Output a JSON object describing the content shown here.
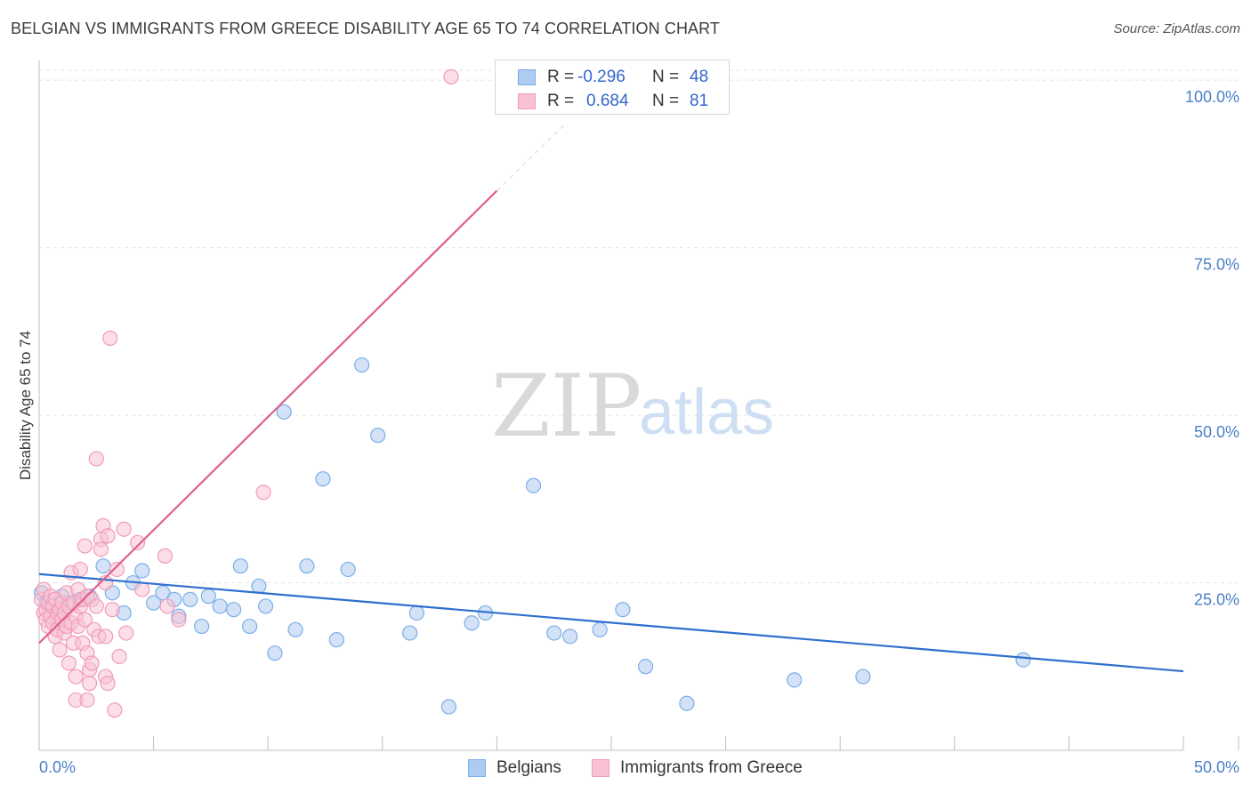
{
  "chart_data": {
    "type": "scatter",
    "title": "BELGIAN VS IMMIGRANTS FROM GREECE DISABILITY AGE 65 TO 74 CORRELATION CHART",
    "source": "Source: ZipAtlas.com",
    "xlabel": "",
    "ylabel": "Disability Age 65 to 74",
    "xlim": [
      0,
      50
    ],
    "ylim": [
      0,
      104
    ],
    "x_tick_labels": {
      "min": "0.0%",
      "max": "50.0%"
    },
    "y_ticks": [
      {
        "value": 25,
        "label": "25.0%"
      },
      {
        "value": 50,
        "label": "50.0%"
      },
      {
        "value": 75,
        "label": "75.0%"
      },
      {
        "value": 100,
        "label": "100.0%"
      }
    ],
    "grid": true,
    "watermark": {
      "zip": "ZIP",
      "atlas": "atlas"
    },
    "legend_position": "top-center",
    "series": [
      {
        "name": "Belgians",
        "color": "#7baee8",
        "fill": "#aecbf1",
        "line_color": "#2f6fcd",
        "r_label": "R =",
        "r_value": "-0.296",
        "n_label": "N =",
        "n_value": "48",
        "trend": {
          "x0": 0,
          "y0": 26.3,
          "x1": 50,
          "y1": 11.8,
          "dashed_to": null
        },
        "points": [
          [
            0.1,
            23.5
          ],
          [
            0.3,
            22.0
          ],
          [
            0.5,
            21.5
          ],
          [
            0.8,
            20.0
          ],
          [
            1.0,
            23.0
          ],
          [
            1.3,
            22.0
          ],
          [
            1.8,
            22.5
          ],
          [
            2.2,
            23.0
          ],
          [
            2.8,
            27.5
          ],
          [
            3.2,
            23.5
          ],
          [
            3.7,
            20.5
          ],
          [
            4.1,
            25.0
          ],
          [
            4.5,
            26.8
          ],
          [
            5.0,
            22.0
          ],
          [
            5.4,
            23.5
          ],
          [
            5.9,
            22.5
          ],
          [
            6.1,
            20.0
          ],
          [
            6.6,
            22.5
          ],
          [
            7.1,
            18.5
          ],
          [
            7.4,
            23.0
          ],
          [
            7.9,
            21.5
          ],
          [
            8.5,
            21.0
          ],
          [
            8.8,
            27.5
          ],
          [
            9.2,
            18.5
          ],
          [
            9.6,
            24.5
          ],
          [
            9.9,
            21.5
          ],
          [
            10.3,
            14.5
          ],
          [
            10.7,
            50.5
          ],
          [
            11.2,
            18.0
          ],
          [
            11.7,
            27.5
          ],
          [
            12.4,
            40.5
          ],
          [
            13.0,
            16.5
          ],
          [
            13.5,
            27.0
          ],
          [
            14.1,
            57.5
          ],
          [
            14.8,
            47.0
          ],
          [
            16.2,
            17.5
          ],
          [
            16.5,
            20.5
          ],
          [
            17.9,
            6.5
          ],
          [
            18.9,
            19.0
          ],
          [
            19.5,
            20.5
          ],
          [
            21.6,
            39.5
          ],
          [
            22.5,
            17.5
          ],
          [
            23.2,
            17.0
          ],
          [
            24.5,
            18.0
          ],
          [
            25.5,
            21.0
          ],
          [
            26.5,
            12.5
          ],
          [
            28.3,
            7.0
          ],
          [
            33.0,
            10.5
          ],
          [
            36.0,
            11.0
          ],
          [
            43.0,
            13.5
          ]
        ]
      },
      {
        "name": "Immigrants from Greece",
        "color": "#f29bb8",
        "fill": "#f8c2d3",
        "line_color": "#e0608a",
        "r_label": "R =",
        "r_value": "0.684",
        "n_label": "N =",
        "n_value": "81",
        "trend": {
          "x0": 0,
          "y0": 16.0,
          "x1": 20.0,
          "y1": 83.5,
          "dashed_to": {
            "x": 23.0,
            "y": 93.5
          }
        },
        "points": [
          [
            0.1,
            22.5
          ],
          [
            0.2,
            20.5
          ],
          [
            0.2,
            24.0
          ],
          [
            0.3,
            21.0
          ],
          [
            0.3,
            19.5
          ],
          [
            0.4,
            22.0
          ],
          [
            0.4,
            18.5
          ],
          [
            0.5,
            23.0
          ],
          [
            0.5,
            20.0
          ],
          [
            0.6,
            21.5
          ],
          [
            0.6,
            19.0
          ],
          [
            0.7,
            22.5
          ],
          [
            0.7,
            17.0
          ],
          [
            0.8,
            20.5
          ],
          [
            0.8,
            18.0
          ],
          [
            0.9,
            21.0
          ],
          [
            0.9,
            15.0
          ],
          [
            1.0,
            19.5
          ],
          [
            1.0,
            22.0
          ],
          [
            1.1,
            17.5
          ],
          [
            1.1,
            20.5
          ],
          [
            1.2,
            23.5
          ],
          [
            1.2,
            18.5
          ],
          [
            1.3,
            21.5
          ],
          [
            1.3,
            13.0
          ],
          [
            1.4,
            19.0
          ],
          [
            1.4,
            26.5
          ],
          [
            1.5,
            22.0
          ],
          [
            1.5,
            16.0
          ],
          [
            1.6,
            20.0
          ],
          [
            1.6,
            11.0
          ],
          [
            1.6,
            7.5
          ],
          [
            1.7,
            18.5
          ],
          [
            1.7,
            24.0
          ],
          [
            1.8,
            21.5
          ],
          [
            1.8,
            27.0
          ],
          [
            1.9,
            22.5
          ],
          [
            1.9,
            16.0
          ],
          [
            2.0,
            30.5
          ],
          [
            2.0,
            19.5
          ],
          [
            2.1,
            23.0
          ],
          [
            2.1,
            14.5
          ],
          [
            2.1,
            7.5
          ],
          [
            2.2,
            10.0
          ],
          [
            2.2,
            12.0
          ],
          [
            2.3,
            22.5
          ],
          [
            2.3,
            13.0
          ],
          [
            2.4,
            18.0
          ],
          [
            2.5,
            43.5
          ],
          [
            2.5,
            21.5
          ],
          [
            2.6,
            17.0
          ],
          [
            2.7,
            31.5
          ],
          [
            2.7,
            30.0
          ],
          [
            2.8,
            33.5
          ],
          [
            2.9,
            25.0
          ],
          [
            2.9,
            17.0
          ],
          [
            2.9,
            11.0
          ],
          [
            3.0,
            10.0
          ],
          [
            3.0,
            32.0
          ],
          [
            3.1,
            61.5
          ],
          [
            3.2,
            21.0
          ],
          [
            3.3,
            6.0
          ],
          [
            3.4,
            27.0
          ],
          [
            3.5,
            14.0
          ],
          [
            3.7,
            33.0
          ],
          [
            3.8,
            17.5
          ],
          [
            4.3,
            31.0
          ],
          [
            4.5,
            24.0
          ],
          [
            5.5,
            29.0
          ],
          [
            5.6,
            21.5
          ],
          [
            6.1,
            19.5
          ],
          [
            9.8,
            38.5
          ],
          [
            18.0,
            100.5
          ]
        ]
      }
    ]
  }
}
